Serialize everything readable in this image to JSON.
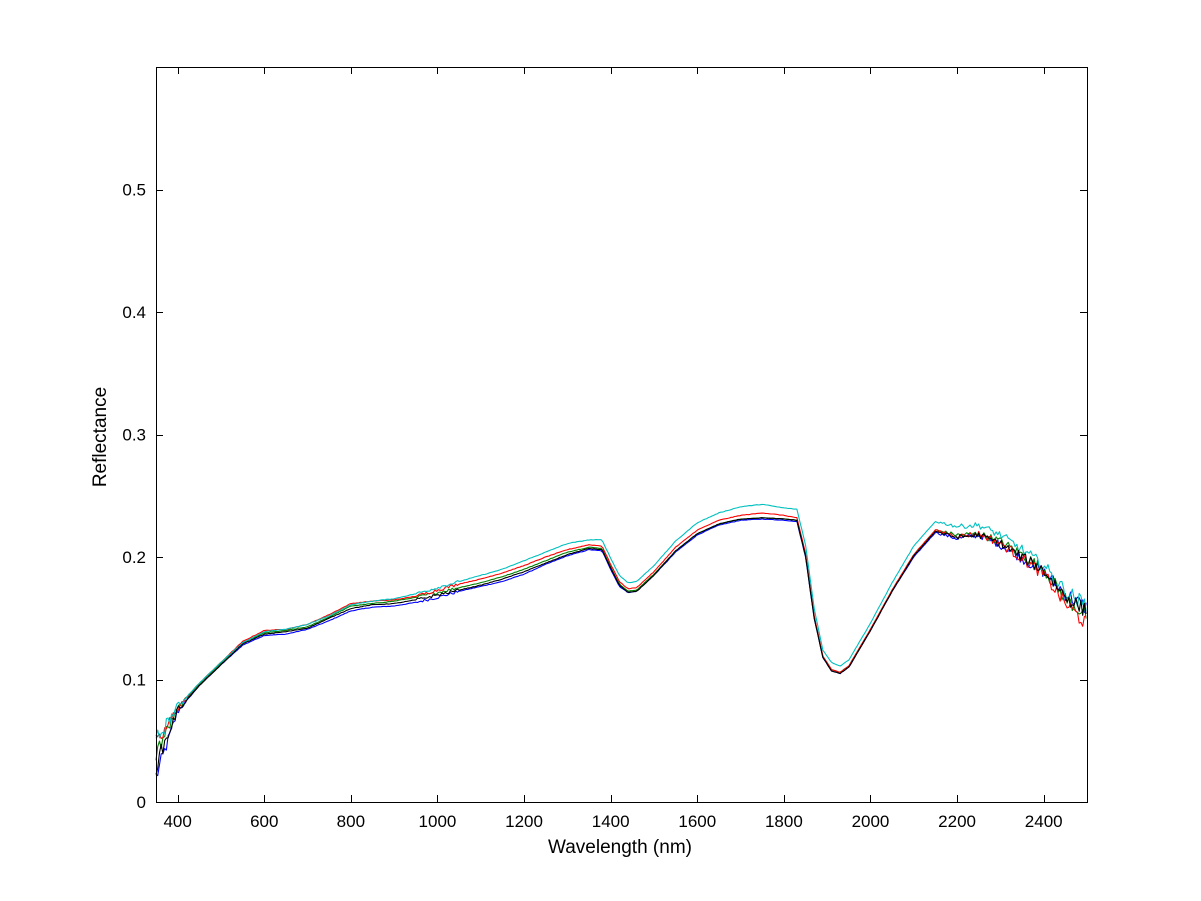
{
  "chart_data": {
    "type": "line",
    "title": "",
    "xlabel": "Wavelength (nm)",
    "ylabel": "Reflectance",
    "xlim": [
      350,
      2500
    ],
    "ylim": [
      0,
      0.6
    ],
    "xticks": [
      400,
      600,
      800,
      1000,
      1200,
      1400,
      1600,
      1800,
      2000,
      2200,
      2400
    ],
    "xtick_labels": [
      "400",
      "600",
      "800",
      "1000",
      "1200",
      "1400",
      "1600",
      "1800",
      "2000",
      "2200",
      "2400"
    ],
    "yticks": [
      0,
      0.1,
      0.2,
      0.3,
      0.4,
      0.5
    ],
    "ytick_labels": [
      "0",
      "0.1",
      "0.2",
      "0.3",
      "0.4",
      "0.5"
    ],
    "grid": false,
    "legend": "none",
    "x": [
      350,
      400,
      450,
      500,
      550,
      600,
      650,
      700,
      750,
      800,
      850,
      900,
      950,
      1000,
      1050,
      1100,
      1150,
      1200,
      1250,
      1300,
      1350,
      1380,
      1400,
      1420,
      1440,
      1460,
      1500,
      1550,
      1600,
      1650,
      1700,
      1750,
      1800,
      1830,
      1850,
      1870,
      1890,
      1910,
      1930,
      1950,
      2000,
      2050,
      2100,
      2150,
      2200,
      2250,
      2300,
      2350,
      2400,
      2450,
      2500
    ],
    "series": [
      {
        "color": "#0000ff",
        "values": [
          0.02,
          0.074,
          0.095,
          0.112,
          0.128,
          0.136,
          0.137,
          0.141,
          0.148,
          0.156,
          0.159,
          0.16,
          0.163,
          0.167,
          0.172,
          0.176,
          0.18,
          0.186,
          0.194,
          0.201,
          0.206,
          0.205,
          0.19,
          0.176,
          0.171,
          0.172,
          0.185,
          0.204,
          0.218,
          0.226,
          0.23,
          0.231,
          0.23,
          0.229,
          0.2,
          0.15,
          0.118,
          0.107,
          0.105,
          0.11,
          0.14,
          0.172,
          0.2,
          0.22,
          0.215,
          0.218,
          0.21,
          0.199,
          0.188,
          0.17,
          0.158
        ]
      },
      {
        "color": "#008000",
        "values": [
          0.04,
          0.076,
          0.096,
          0.113,
          0.13,
          0.138,
          0.14,
          0.143,
          0.151,
          0.16,
          0.162,
          0.164,
          0.167,
          0.171,
          0.175,
          0.179,
          0.184,
          0.19,
          0.197,
          0.204,
          0.208,
          0.207,
          0.192,
          0.178,
          0.172,
          0.173,
          0.186,
          0.205,
          0.219,
          0.227,
          0.231,
          0.232,
          0.231,
          0.23,
          0.201,
          0.151,
          0.119,
          0.108,
          0.106,
          0.111,
          0.141,
          0.173,
          0.202,
          0.222,
          0.218,
          0.219,
          0.213,
          0.202,
          0.19,
          0.166,
          0.152
        ]
      },
      {
        "color": "#ff0000",
        "values": [
          0.045,
          0.077,
          0.097,
          0.114,
          0.131,
          0.14,
          0.141,
          0.145,
          0.153,
          0.162,
          0.164,
          0.165,
          0.168,
          0.173,
          0.178,
          0.182,
          0.187,
          0.193,
          0.2,
          0.206,
          0.21,
          0.209,
          0.194,
          0.18,
          0.174,
          0.175,
          0.188,
          0.208,
          0.222,
          0.23,
          0.234,
          0.236,
          0.234,
          0.232,
          0.203,
          0.152,
          0.119,
          0.108,
          0.106,
          0.111,
          0.141,
          0.173,
          0.202,
          0.222,
          0.217,
          0.219,
          0.211,
          0.199,
          0.186,
          0.162,
          0.145
        ]
      },
      {
        "color": "#00bfbf",
        "values": [
          0.05,
          0.078,
          0.097,
          0.114,
          0.13,
          0.139,
          0.141,
          0.145,
          0.152,
          0.161,
          0.164,
          0.166,
          0.17,
          0.175,
          0.18,
          0.185,
          0.19,
          0.197,
          0.204,
          0.211,
          0.214,
          0.214,
          0.199,
          0.185,
          0.179,
          0.18,
          0.193,
          0.213,
          0.228,
          0.236,
          0.241,
          0.243,
          0.24,
          0.239,
          0.21,
          0.158,
          0.124,
          0.114,
          0.111,
          0.116,
          0.146,
          0.179,
          0.209,
          0.229,
          0.225,
          0.226,
          0.218,
          0.206,
          0.193,
          0.172,
          0.16
        ]
      },
      {
        "color": "#000000",
        "values": [
          0.03,
          0.075,
          0.095,
          0.112,
          0.129,
          0.137,
          0.139,
          0.142,
          0.15,
          0.158,
          0.161,
          0.162,
          0.165,
          0.169,
          0.173,
          0.177,
          0.182,
          0.188,
          0.195,
          0.202,
          0.207,
          0.206,
          0.191,
          0.177,
          0.171,
          0.172,
          0.185,
          0.205,
          0.219,
          0.227,
          0.231,
          0.232,
          0.231,
          0.23,
          0.201,
          0.15,
          0.118,
          0.107,
          0.105,
          0.11,
          0.14,
          0.172,
          0.201,
          0.221,
          0.216,
          0.218,
          0.211,
          0.2,
          0.189,
          0.168,
          0.155
        ]
      }
    ]
  }
}
